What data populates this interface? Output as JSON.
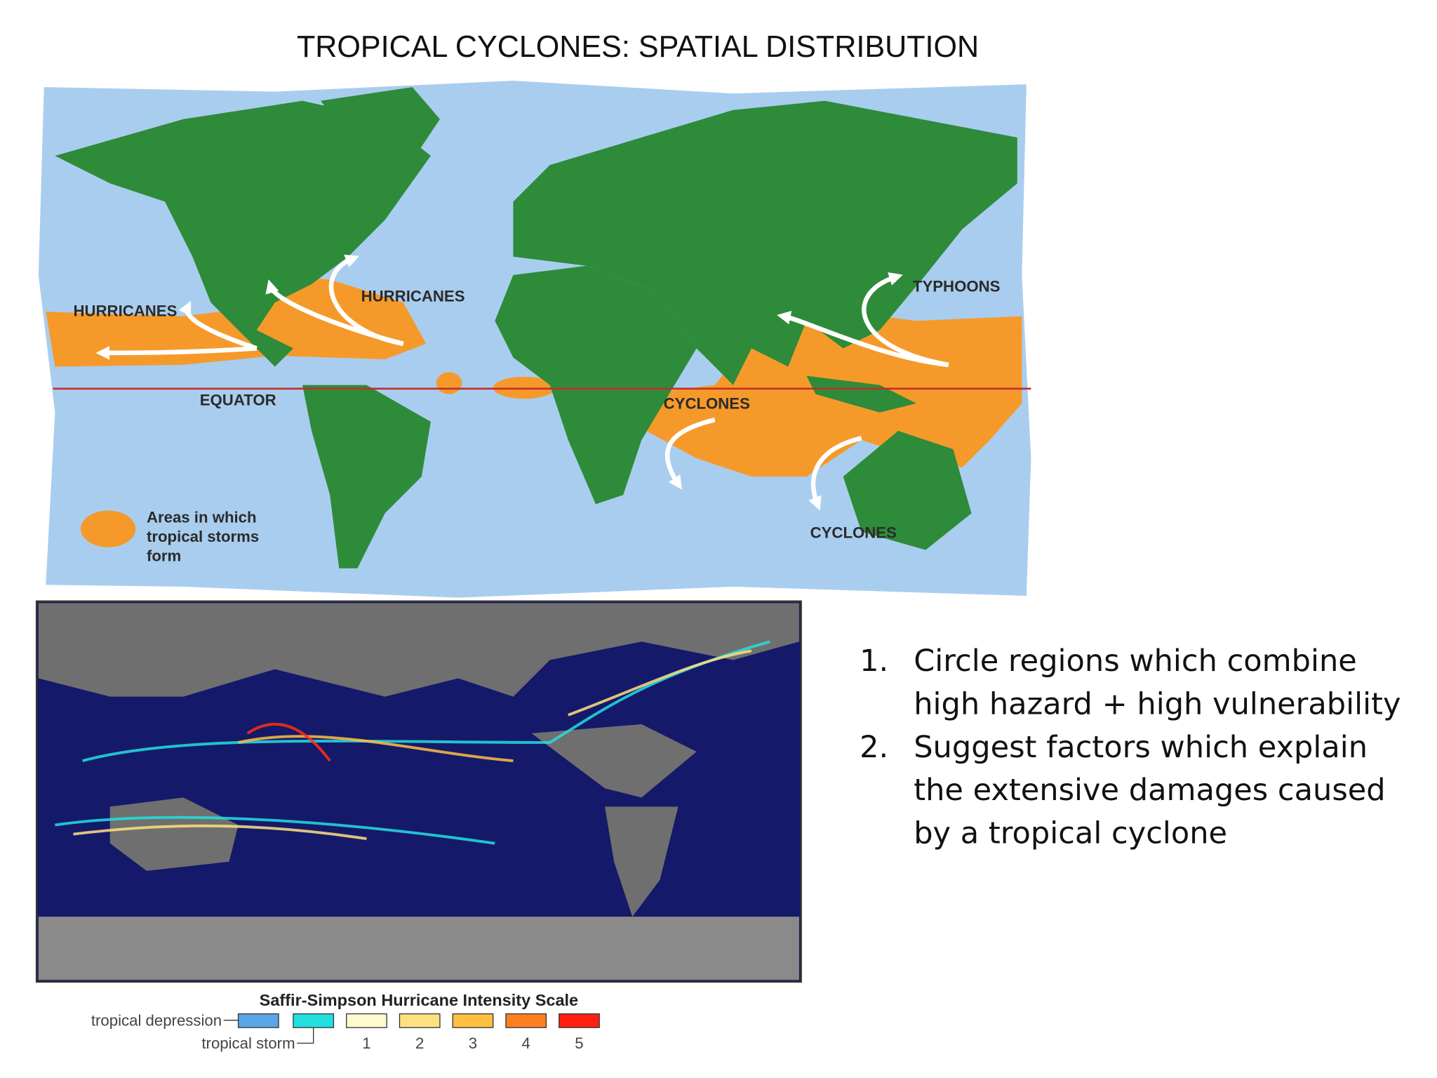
{
  "header": {
    "title": "TROPICAL CYCLONES: SPATIAL DISTRIBUTION"
  },
  "map": {
    "labels": [
      "HURRICANES",
      "HURRICANES",
      "TYPHOONS",
      "EQUATOR",
      "CYCLONES",
      "CYCLONES"
    ],
    "legend": [
      "Areas in which",
      "tropical storms",
      "form"
    ]
  },
  "track_map": {
    "scale_title": "Saffir-Simpson Hurricane Intensity Scale",
    "depression": "tropical depression",
    "storm": "tropical storm",
    "categories": [
      "1",
      "2",
      "3",
      "4",
      "5"
    ]
  },
  "questions": [
    {
      "marker": "1.",
      "lines": [
        "Circle regions which combine",
        "high hazard + high vulnerability"
      ]
    },
    {
      "marker": "2.",
      "lines": [
        "Suggest factors which explain",
        "the extensive damages caused",
        "by a tropical cyclone"
      ]
    }
  ]
}
